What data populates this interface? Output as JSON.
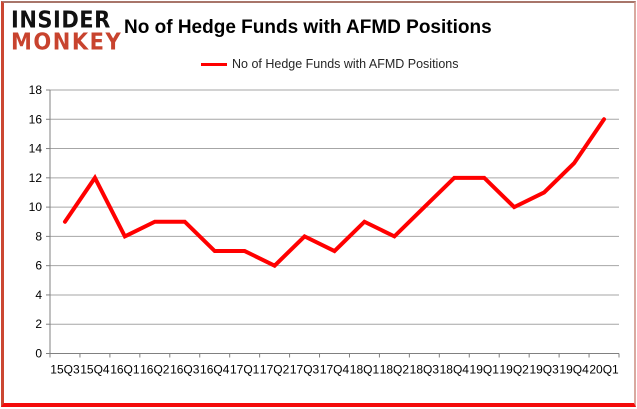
{
  "logo": {
    "line1": "INSIDER",
    "line2": "MONKEY"
  },
  "header": {
    "title": "No of Hedge Funds with AFMD Positions"
  },
  "legend": {
    "label": "No of Hedge Funds with AFMD Positions",
    "line_color": "#ff0000"
  },
  "chart_data": {
    "type": "line",
    "title": "No of Hedge Funds with AFMD Positions",
    "series_name": "No of Hedge Funds with AFMD Positions",
    "categories": [
      "15Q3",
      "15Q4",
      "16Q1",
      "16Q2",
      "16Q3",
      "16Q4",
      "17Q1",
      "17Q2",
      "17Q3",
      "17Q4",
      "18Q1",
      "18Q2",
      "18Q3",
      "18Q4",
      "19Q1",
      "19Q2",
      "19Q3",
      "19Q4",
      "20Q1"
    ],
    "values": [
      9,
      12,
      8,
      9,
      9,
      7,
      7,
      6,
      8,
      7,
      9,
      8,
      10,
      12,
      12,
      10,
      11,
      13,
      16
    ],
    "xlabel": "",
    "ylabel": "",
    "ylim": [
      0,
      18
    ],
    "ytick_step": 2,
    "yticks": [
      0,
      2,
      4,
      6,
      8,
      10,
      12,
      14,
      16,
      18
    ],
    "grid": true,
    "legend_position": "top-center",
    "line_color": "#ff0000",
    "grid_color": "#a6a6a6",
    "axis_color": "#808080",
    "label_color": "#000000"
  },
  "colors": {
    "background": "#ffffff",
    "logo_red": "#c8432e",
    "border_red": "#f40b0b"
  }
}
